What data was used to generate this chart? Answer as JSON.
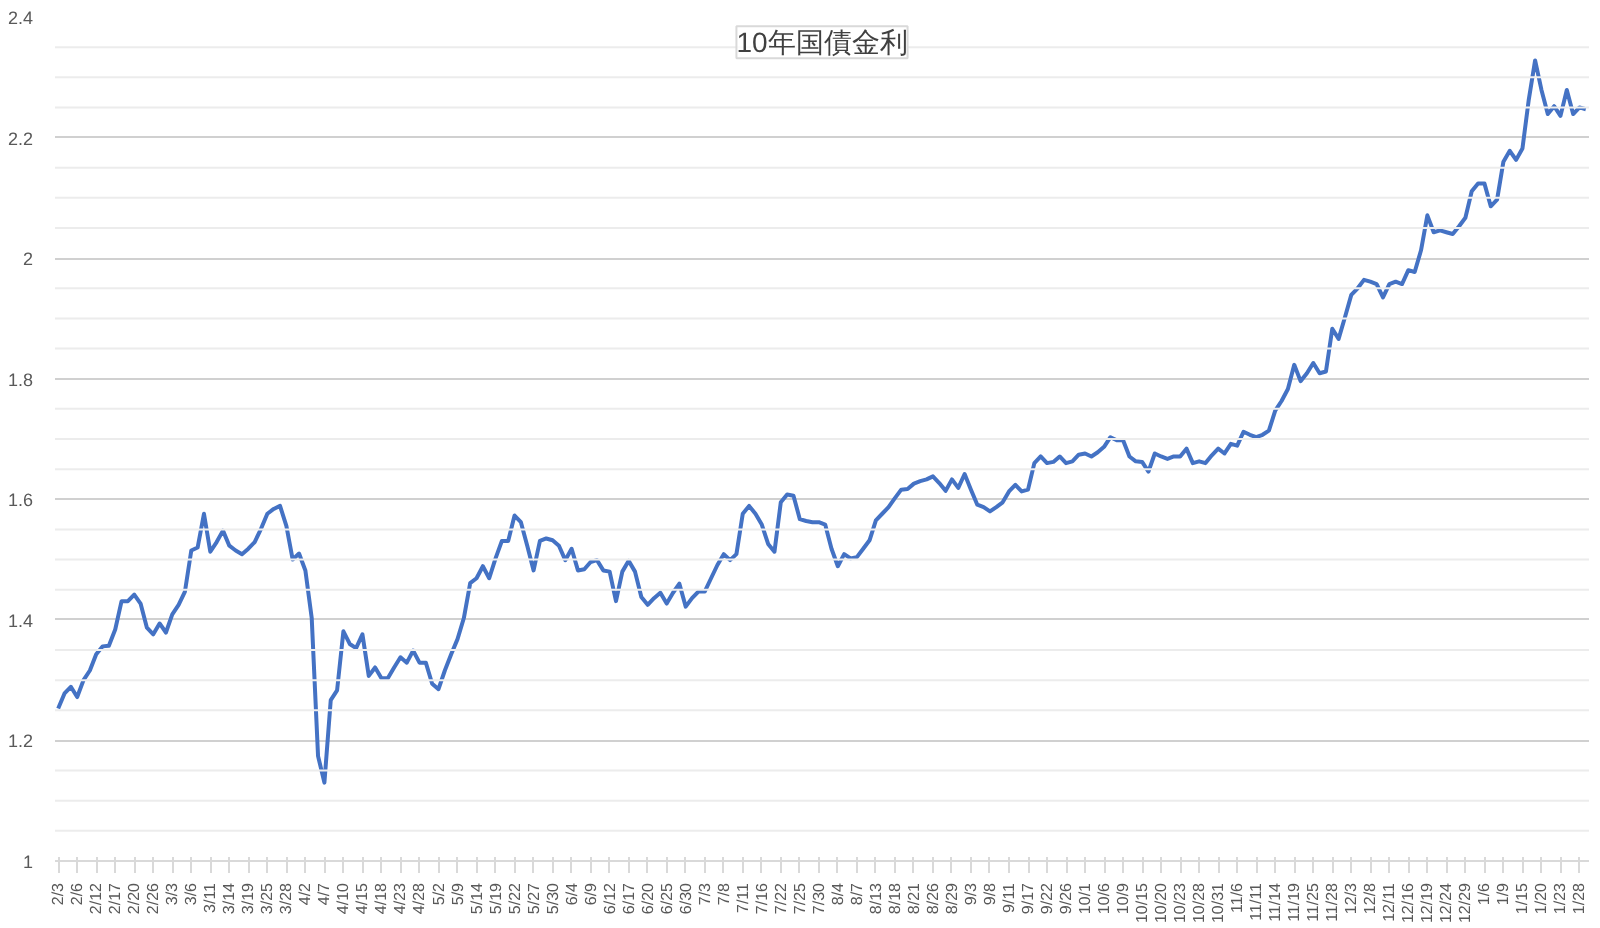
{
  "chart_data": {
    "type": "line",
    "title": "10年国債金利",
    "categories": [
      "2/3",
      null,
      null,
      "2/6",
      null,
      null,
      "2/12",
      null,
      null,
      "2/17",
      null,
      null,
      "2/20",
      null,
      null,
      "2/26",
      null,
      null,
      "3/3",
      null,
      null,
      "3/6",
      null,
      null,
      "3/11",
      null,
      null,
      "3/14",
      null,
      null,
      "3/19",
      null,
      null,
      "3/25",
      null,
      null,
      "3/28",
      null,
      null,
      "4/2",
      null,
      null,
      "4/7",
      null,
      null,
      "4/10",
      null,
      null,
      "4/15",
      null,
      null,
      "4/18",
      null,
      null,
      "4/23",
      null,
      null,
      "4/28",
      null,
      null,
      "5/2",
      null,
      null,
      "5/9",
      null,
      null,
      "5/14",
      null,
      null,
      "5/19",
      null,
      null,
      "5/22",
      null,
      null,
      "5/27",
      null,
      null,
      "5/30",
      null,
      null,
      "6/4",
      null,
      null,
      "6/9",
      null,
      null,
      "6/12",
      null,
      null,
      "6/17",
      null,
      null,
      "6/20",
      null,
      null,
      "6/25",
      null,
      null,
      "6/30",
      null,
      null,
      "7/3",
      null,
      null,
      "7/8",
      null,
      null,
      "7/11",
      null,
      null,
      "7/16",
      null,
      null,
      "7/22",
      null,
      null,
      "7/25",
      null,
      null,
      "7/30",
      null,
      null,
      "8/4",
      null,
      null,
      "8/7",
      null,
      null,
      "8/13",
      null,
      null,
      "8/18",
      null,
      null,
      "8/21",
      null,
      null,
      "8/26",
      null,
      null,
      "8/29",
      null,
      null,
      "9/3",
      null,
      null,
      "9/8",
      null,
      null,
      "9/11",
      null,
      null,
      "9/17",
      null,
      null,
      "9/22",
      null,
      null,
      "9/26",
      null,
      null,
      "10/1",
      null,
      null,
      "10/6",
      null,
      null,
      "10/9",
      null,
      null,
      "10/15",
      null,
      null,
      "10/20",
      null,
      null,
      "10/23",
      null,
      null,
      "10/28",
      null,
      null,
      "10/31",
      null,
      null,
      "11/6",
      null,
      null,
      "11/11",
      null,
      null,
      "11/14",
      null,
      null,
      "11/19",
      null,
      null,
      "11/25",
      null,
      null,
      "11/28",
      null,
      null,
      "12/3",
      null,
      null,
      "12/8",
      null,
      null,
      "12/11",
      null,
      null,
      "12/16",
      null,
      null,
      "12/19",
      null,
      null,
      "12/24",
      null,
      null,
      "12/29",
      null,
      null,
      "1/6",
      null,
      null,
      "1/9",
      null,
      null,
      "1/15",
      null,
      null,
      "1/20",
      null,
      null,
      "1/23",
      null,
      null,
      "1/28",
      null
    ],
    "series": [
      {
        "color": "#4472c4",
        "values": [
          1.253,
          1.278,
          1.289,
          1.272,
          1.3,
          1.316,
          1.343,
          1.356,
          1.357,
          1.384,
          1.431,
          1.431,
          1.442,
          1.427,
          1.387,
          1.376,
          1.394,
          1.379,
          1.409,
          1.425,
          1.447,
          1.515,
          1.52,
          1.576,
          1.513,
          1.529,
          1.548,
          1.523,
          1.515,
          1.509,
          1.518,
          1.529,
          1.551,
          1.576,
          1.584,
          1.589,
          1.556,
          1.5,
          1.51,
          1.482,
          1.403,
          1.174,
          1.13,
          1.267,
          1.283,
          1.381,
          1.36,
          1.353,
          1.376,
          1.307,
          1.321,
          1.303,
          1.303,
          1.321,
          1.338,
          1.329,
          1.349,
          1.329,
          1.329,
          1.294,
          1.285,
          1.316,
          1.343,
          1.368,
          1.403,
          1.461,
          1.469,
          1.489,
          1.469,
          1.502,
          1.531,
          1.531,
          1.573,
          1.562,
          1.523,
          1.482,
          1.531,
          1.535,
          1.532,
          1.523,
          1.499,
          1.518,
          1.482,
          1.484,
          1.496,
          1.499,
          1.482,
          1.48,
          1.431,
          1.48,
          1.498,
          1.48,
          1.438,
          1.425,
          1.436,
          1.445,
          1.427,
          1.445,
          1.46,
          1.422,
          1.436,
          1.447,
          1.447,
          1.469,
          1.491,
          1.509,
          1.499,
          1.509,
          1.576,
          1.589,
          1.576,
          1.558,
          1.526,
          1.513,
          1.595,
          1.608,
          1.606,
          1.567,
          1.564,
          1.562,
          1.562,
          1.558,
          1.518,
          1.489,
          1.509,
          1.502,
          1.504,
          1.518,
          1.532,
          1.565,
          1.576,
          1.587,
          1.602,
          1.616,
          1.617,
          1.626,
          1.63,
          1.633,
          1.638,
          1.627,
          1.614,
          1.633,
          1.619,
          1.642,
          1.616,
          1.591,
          1.587,
          1.58,
          1.587,
          1.595,
          1.613,
          1.624,
          1.613,
          1.616,
          1.66,
          1.671,
          1.66,
          1.662,
          1.671,
          1.66,
          1.663,
          1.674,
          1.676,
          1.671,
          1.678,
          1.687,
          1.703,
          1.698,
          1.698,
          1.671,
          1.663,
          1.662,
          1.646,
          1.676,
          1.671,
          1.667,
          1.671,
          1.671,
          1.684,
          1.66,
          1.663,
          1.66,
          1.673,
          1.684,
          1.676,
          1.692,
          1.689,
          1.712,
          1.707,
          1.703,
          1.707,
          1.714,
          1.747,
          1.763,
          1.783,
          1.823,
          1.796,
          1.809,
          1.826,
          1.809,
          1.812,
          1.883,
          1.866,
          1.902,
          1.939,
          1.95,
          1.964,
          1.961,
          1.957,
          1.935,
          1.957,
          1.961,
          1.957,
          1.98,
          1.977,
          2.013,
          2.071,
          2.043,
          2.046,
          2.043,
          2.04,
          2.053,
          2.067,
          2.111,
          2.124,
          2.124,
          2.086,
          2.097,
          2.16,
          2.178,
          2.163,
          2.182,
          2.263,
          2.328,
          2.279,
          2.239,
          2.252,
          2.236,
          2.279,
          2.239,
          2.25,
          2.247
        ]
      }
    ],
    "ylim": [
      1,
      2.4
    ],
    "yticks": [
      1,
      {
        "value": 1.05,
        "label": null
      },
      {
        "value": 1.1,
        "label": null
      },
      {
        "value": 1.15,
        "label": null
      },
      1.2,
      {
        "value": 1.25,
        "label": null
      },
      {
        "value": 1.3,
        "label": null
      },
      {
        "value": 1.35,
        "label": null
      },
      1.4,
      {
        "value": 1.45,
        "label": null
      },
      {
        "value": 1.5,
        "label": null
      },
      {
        "value": 1.55,
        "label": null
      },
      1.6,
      {
        "value": 1.65,
        "label": null
      },
      {
        "value": 1.7,
        "label": null
      },
      {
        "value": 1.75,
        "label": null
      },
      1.8,
      {
        "value": 1.85,
        "label": null
      },
      {
        "value": 1.9,
        "label": null
      },
      {
        "value": 1.95,
        "label": null
      },
      2,
      {
        "value": 2.05,
        "label": null
      },
      {
        "value": 2.1,
        "label": null
      },
      {
        "value": 2.15,
        "label": null
      },
      2.2,
      {
        "value": 2.25,
        "label": null
      },
      {
        "value": 2.3,
        "label": null
      },
      {
        "value": 2.35,
        "label": null
      },
      2.4
    ],
    "grid": "y",
    "marker": "none",
    "line_style": "solid"
  }
}
